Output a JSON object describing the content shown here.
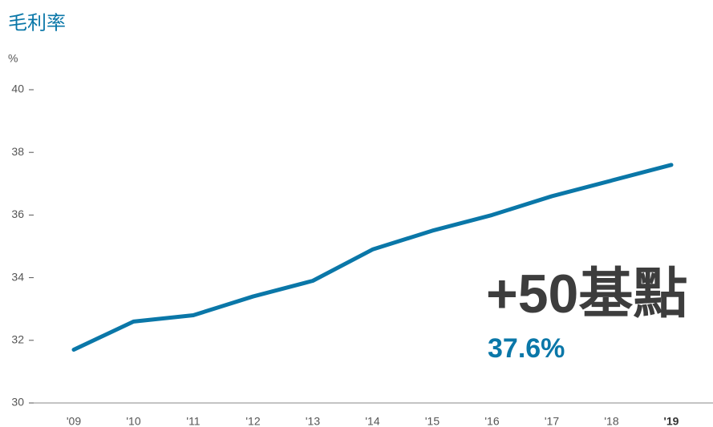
{
  "chart_data": {
    "type": "line",
    "title": "毛利率",
    "y_axis_label": "%",
    "categories": [
      "'09",
      "'10",
      "'11",
      "'12",
      "'13",
      "'14",
      "'15",
      "'16",
      "'17",
      "'18",
      "'19"
    ],
    "series": [
      {
        "name": "毛利率",
        "color": "#0a77a8",
        "values": [
          31.7,
          32.6,
          32.8,
          33.4,
          33.9,
          34.9,
          35.5,
          36.0,
          36.6,
          37.1,
          37.6
        ]
      }
    ],
    "ylim": [
      30,
      40
    ],
    "yticks": [
      30,
      32,
      34,
      36,
      38,
      40
    ],
    "annotations": [
      "+50基點",
      "37.6%"
    ]
  }
}
